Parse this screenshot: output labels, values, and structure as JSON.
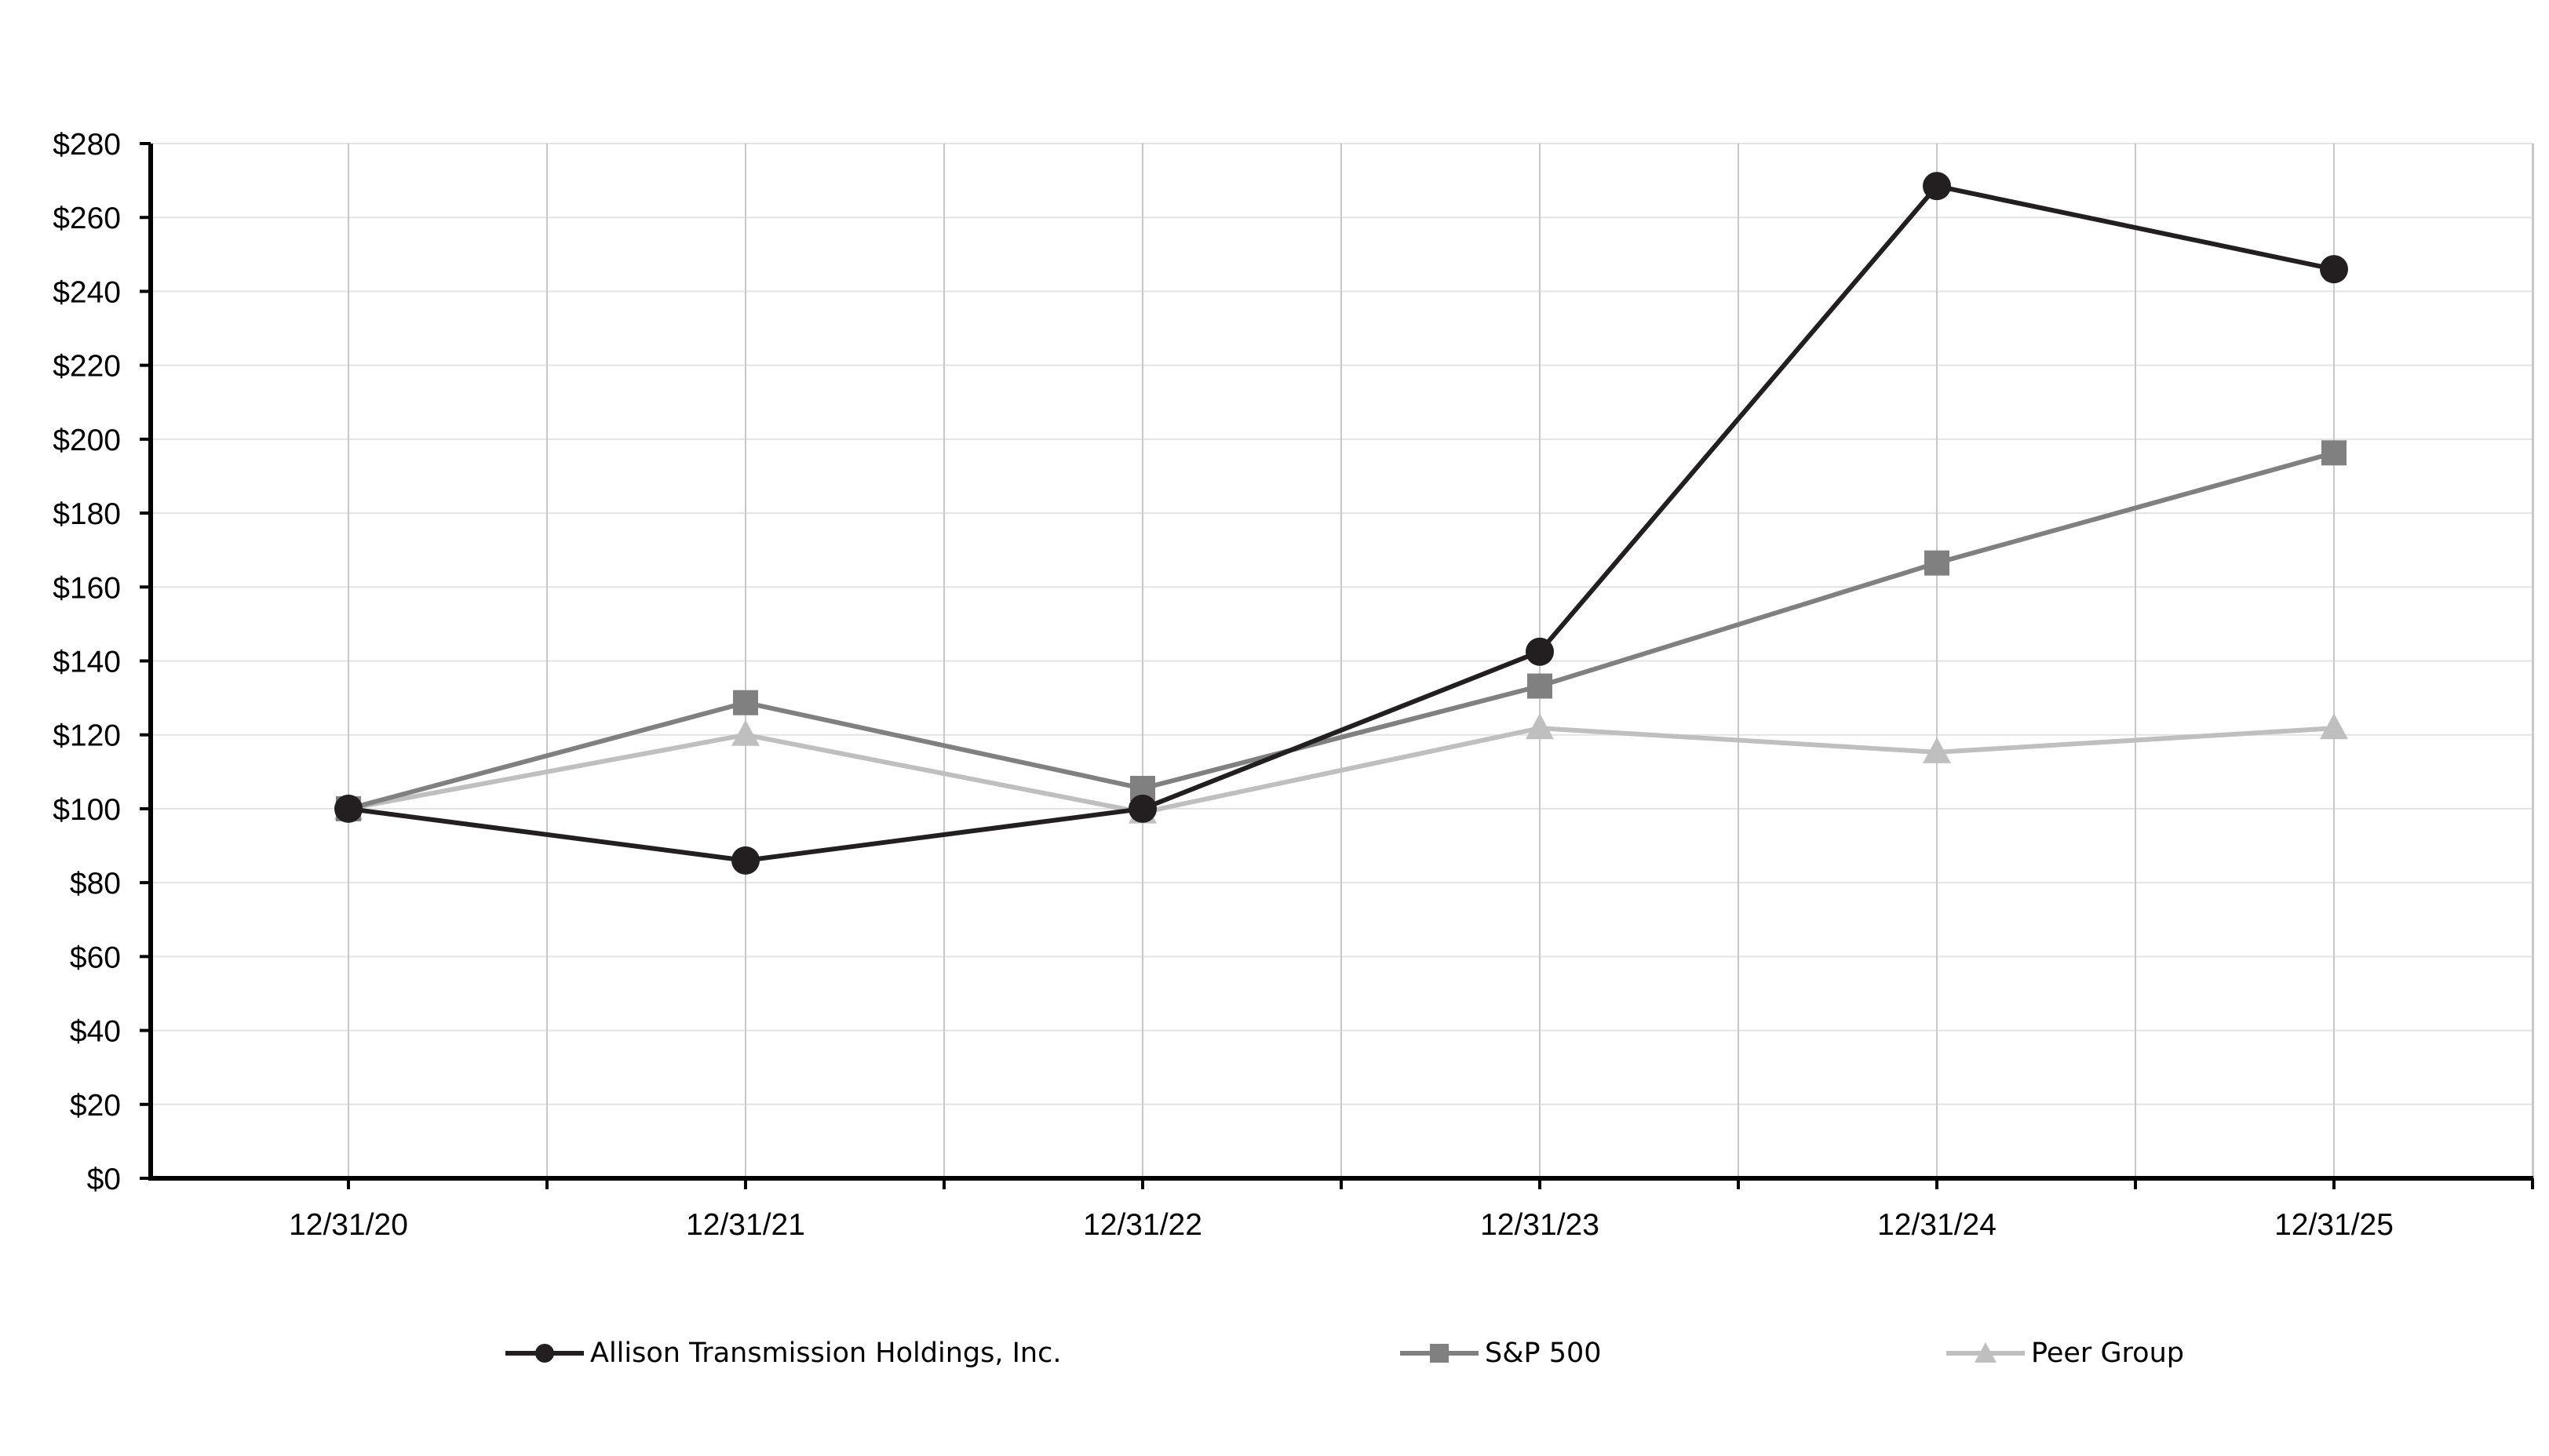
{
  "chart_data": {
    "type": "line",
    "title": "",
    "xlabel": "",
    "ylabel": "",
    "categories": [
      "12/31/20",
      "12/31/21",
      "12/31/22",
      "12/31/23",
      "12/31/24",
      "12/31/25"
    ],
    "ylim": [
      0,
      280
    ],
    "y_ticks": [
      0,
      20,
      40,
      60,
      80,
      100,
      120,
      140,
      160,
      180,
      200,
      220,
      240,
      260,
      280
    ],
    "y_tick_labels": [
      "$0",
      "$20",
      "$40",
      "$60",
      "$80",
      "$100",
      "$120",
      "$140",
      "$160",
      "$180",
      "$200",
      "$220",
      "$240",
      "$260",
      "$280"
    ],
    "grid": true,
    "legend_position": "bottom",
    "series": [
      {
        "name": "Allison Transmission Holdings, Inc.",
        "values": [
          100,
          86,
          100,
          142.5,
          268.5,
          246
        ],
        "color": "#231f20",
        "marker": "circle"
      },
      {
        "name": "S&P 500",
        "values": [
          100,
          128.7,
          105.5,
          133.2,
          166.5,
          196.3
        ],
        "color": "#808080",
        "marker": "square"
      },
      {
        "name": "Peer Group",
        "values": [
          100,
          120,
          99,
          121.8,
          115.3,
          121.8
        ],
        "color": "#bfbfbf",
        "marker": "triangle"
      }
    ]
  }
}
